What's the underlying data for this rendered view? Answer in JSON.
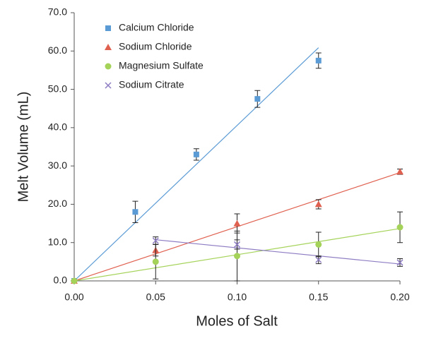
{
  "chart_data": {
    "type": "scatter",
    "x_label": "Moles of Salt",
    "y_label": "Melt Volume (mL)",
    "xlim": [
      0,
      0.2
    ],
    "ylim": [
      0,
      70
    ],
    "xticks": [
      {
        "value": 0,
        "label": "0.00"
      },
      {
        "value": 0.05,
        "label": "0.05"
      },
      {
        "value": 0.1,
        "label": "0.10"
      },
      {
        "value": 0.15,
        "label": "0.15"
      },
      {
        "value": 0.2,
        "label": "0.20"
      }
    ],
    "yticks": [
      {
        "value": 0,
        "label": "0.0"
      },
      {
        "value": 10,
        "label": "10.0"
      },
      {
        "value": 20,
        "label": "20.0"
      },
      {
        "value": 30,
        "label": "30.0"
      },
      {
        "value": 40,
        "label": "40.0"
      },
      {
        "value": 50,
        "label": "50.0"
      },
      {
        "value": 60,
        "label": "60.0"
      },
      {
        "value": 70,
        "label": "70.0"
      }
    ],
    "grid": false,
    "legend": "top-left",
    "series": [
      {
        "name": "Calcium Chloride",
        "color": "#5b9bd5",
        "marker": "square",
        "trendline": "through-origin",
        "x": [
          0,
          0.0375,
          0.075,
          0.1125,
          0.15
        ],
        "values": [
          0,
          18,
          33,
          47.5,
          57.5
        ],
        "errors": [
          0,
          2.8,
          1.5,
          2.2,
          2
        ]
      },
      {
        "name": "Sodium Chloride",
        "color": "#e0604f",
        "marker": "triangle",
        "trendline": "through-origin",
        "x": [
          0,
          0.05,
          0.1,
          0.15,
          0.2
        ],
        "values": [
          0,
          8,
          15,
          20,
          28.5
        ],
        "errors": [
          0,
          1.5,
          2.5,
          1.2,
          0.7
        ]
      },
      {
        "name": "Magnesium Sulfate",
        "color": "#a5d35a",
        "marker": "circle",
        "trendline": "through-origin",
        "x": [
          0,
          0.05,
          0.1,
          0.15,
          0.2
        ],
        "values": [
          0,
          5,
          6.5,
          9.5,
          14
        ],
        "errors": [
          0,
          4.5,
          6.5,
          3.2,
          4
        ]
      },
      {
        "name": "Sodium Citrate",
        "color": "#8e7cc3",
        "marker": "cross",
        "trendline": "linear",
        "x": [
          0.05,
          0.1,
          0.15,
          0.2
        ],
        "values": [
          10.5,
          9.5,
          5.5,
          4.8
        ],
        "errors": [
          1,
          1.2,
          1,
          1
        ]
      }
    ]
  }
}
